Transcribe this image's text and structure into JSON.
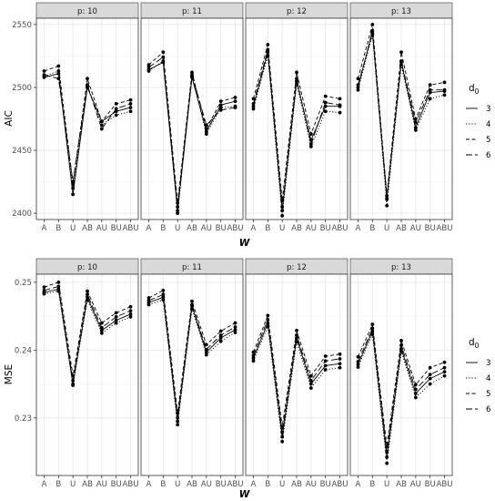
{
  "chart_data": [
    {
      "type": "line",
      "ylabel": "AIC",
      "xlabel": "W",
      "ylim": [
        2395,
        2555
      ],
      "yticks": [
        2400,
        2450,
        2500,
        2550
      ],
      "categories": [
        "A",
        "B",
        "U",
        "AB",
        "AU",
        "BU",
        "ABU"
      ],
      "facet_label_prefix": "p: ",
      "panels": [
        {
          "p": "10",
          "series": [
            {
              "values": [
                2508,
                2511,
                2415,
                2500,
                2473,
                2481,
                2484
              ]
            },
            {
              "values": [
                2509,
                2513,
                2420,
                2501,
                2470,
                2478,
                2481
              ]
            },
            {
              "values": [
                2513,
                2517,
                2423,
                2507,
                2473,
                2487,
                2490
              ]
            },
            {
              "values": [
                2510,
                2507,
                2425,
                2502,
                2467,
                2483,
                2487
              ]
            }
          ]
        },
        {
          "p": "11",
          "series": [
            {
              "values": [
                2514,
                2520,
                2402,
                2508,
                2465,
                2486,
                2489
              ]
            },
            {
              "values": [
                2513,
                2521,
                2400,
                2509,
                2463,
                2484,
                2485
              ]
            },
            {
              "values": [
                2518,
                2528,
                2408,
                2512,
                2467,
                2489,
                2492
              ]
            },
            {
              "values": [
                2516,
                2524,
                2405,
                2510,
                2470,
                2482,
                2484
              ]
            }
          ]
        },
        {
          "p": "12",
          "series": [
            {
              "values": [
                2485,
                2528,
                2402,
                2505,
                2458,
                2485,
                2485
              ]
            },
            {
              "values": [
                2483,
                2525,
                2398,
                2503,
                2453,
                2481,
                2480
              ]
            },
            {
              "values": [
                2491,
                2534,
                2410,
                2512,
                2463,
                2493,
                2491
              ]
            },
            {
              "values": [
                2487,
                2530,
                2405,
                2507,
                2455,
                2488,
                2486
              ]
            }
          ]
        },
        {
          "p": "13",
          "series": [
            {
              "values": [
                2500,
                2545,
                2412,
                2520,
                2468,
                2496,
                2497
              ]
            },
            {
              "values": [
                2498,
                2542,
                2406,
                2518,
                2466,
                2491,
                2494
              ]
            },
            {
              "values": [
                2507,
                2550,
                2414,
                2528,
                2475,
                2502,
                2504
              ]
            },
            {
              "values": [
                2502,
                2543,
                2411,
                2521,
                2472,
                2498,
                2498
              ]
            }
          ]
        }
      ]
    },
    {
      "type": "line",
      "ylabel": "MSE",
      "xlabel": "W",
      "ylim": [
        0.2215,
        0.2512
      ],
      "yticks": [
        0.23,
        0.24,
        0.25
      ],
      "categories": [
        "A",
        "B",
        "U",
        "AB",
        "AU",
        "BU",
        "ABU"
      ],
      "facet_label_prefix": "p: ",
      "panels": [
        {
          "p": "10",
          "series": [
            {
              "values": [
                0.2485,
                0.249,
                0.235,
                0.2478,
                0.2429,
                0.2444,
                0.2453
              ]
            },
            {
              "values": [
                0.2483,
                0.2487,
                0.2348,
                0.2474,
                0.2425,
                0.244,
                0.2449
              ]
            },
            {
              "values": [
                0.2493,
                0.25,
                0.2362,
                0.2487,
                0.244,
                0.2455,
                0.2464
              ]
            },
            {
              "values": [
                0.2488,
                0.2494,
                0.2355,
                0.2482,
                0.2433,
                0.2449,
                0.2458
              ]
            }
          ]
        },
        {
          "p": "11",
          "series": [
            {
              "values": [
                0.247,
                0.2478,
                0.2295,
                0.2465,
                0.2397,
                0.2418,
                0.243
              ]
            },
            {
              "values": [
                0.2467,
                0.2474,
                0.229,
                0.2461,
                0.2393,
                0.2413,
                0.2426
              ]
            },
            {
              "values": [
                0.2477,
                0.2488,
                0.2307,
                0.2472,
                0.2408,
                0.2428,
                0.244
              ]
            },
            {
              "values": [
                0.2473,
                0.2482,
                0.23,
                0.2467,
                0.2401,
                0.2422,
                0.2434
              ]
            }
          ]
        },
        {
          "p": "12",
          "series": [
            {
              "values": [
                0.2388,
                0.244,
                0.2272,
                0.2418,
                0.235,
                0.2377,
                0.238
              ]
            },
            {
              "values": [
                0.2384,
                0.2435,
                0.2265,
                0.2412,
                0.2344,
                0.2371,
                0.2374
              ]
            },
            {
              "values": [
                0.2397,
                0.2451,
                0.2287,
                0.2429,
                0.2362,
                0.2391,
                0.2394
              ]
            },
            {
              "values": [
                0.2392,
                0.2445,
                0.2279,
                0.2422,
                0.2355,
                0.2384,
                0.2387
              ]
            }
          ]
        },
        {
          "p": "13",
          "series": [
            {
              "values": [
                0.2379,
                0.2428,
                0.2242,
                0.2402,
                0.2336,
                0.2358,
                0.2368
              ]
            },
            {
              "values": [
                0.2375,
                0.2423,
                0.2233,
                0.2398,
                0.233,
                0.235,
                0.2362
              ]
            },
            {
              "values": [
                0.239,
                0.2438,
                0.2258,
                0.2414,
                0.2349,
                0.2374,
                0.2382
              ]
            },
            {
              "values": [
                0.2383,
                0.2432,
                0.225,
                0.2407,
                0.2342,
                0.2364,
                0.2374
              ]
            }
          ]
        }
      ]
    }
  ],
  "legend": {
    "title": "d",
    "title_subscript": "0",
    "position": "right",
    "items": [
      {
        "label": "3",
        "dash": "solid"
      },
      {
        "label": "4",
        "dash": "dotted"
      },
      {
        "label": "5",
        "dash": "dashed"
      },
      {
        "label": "6",
        "dash": "longdash"
      }
    ]
  },
  "colors": {
    "line": "#000000",
    "strip_bg": "#d9d9d9",
    "grid": "#ebebeb",
    "panel_border": "#333333"
  }
}
